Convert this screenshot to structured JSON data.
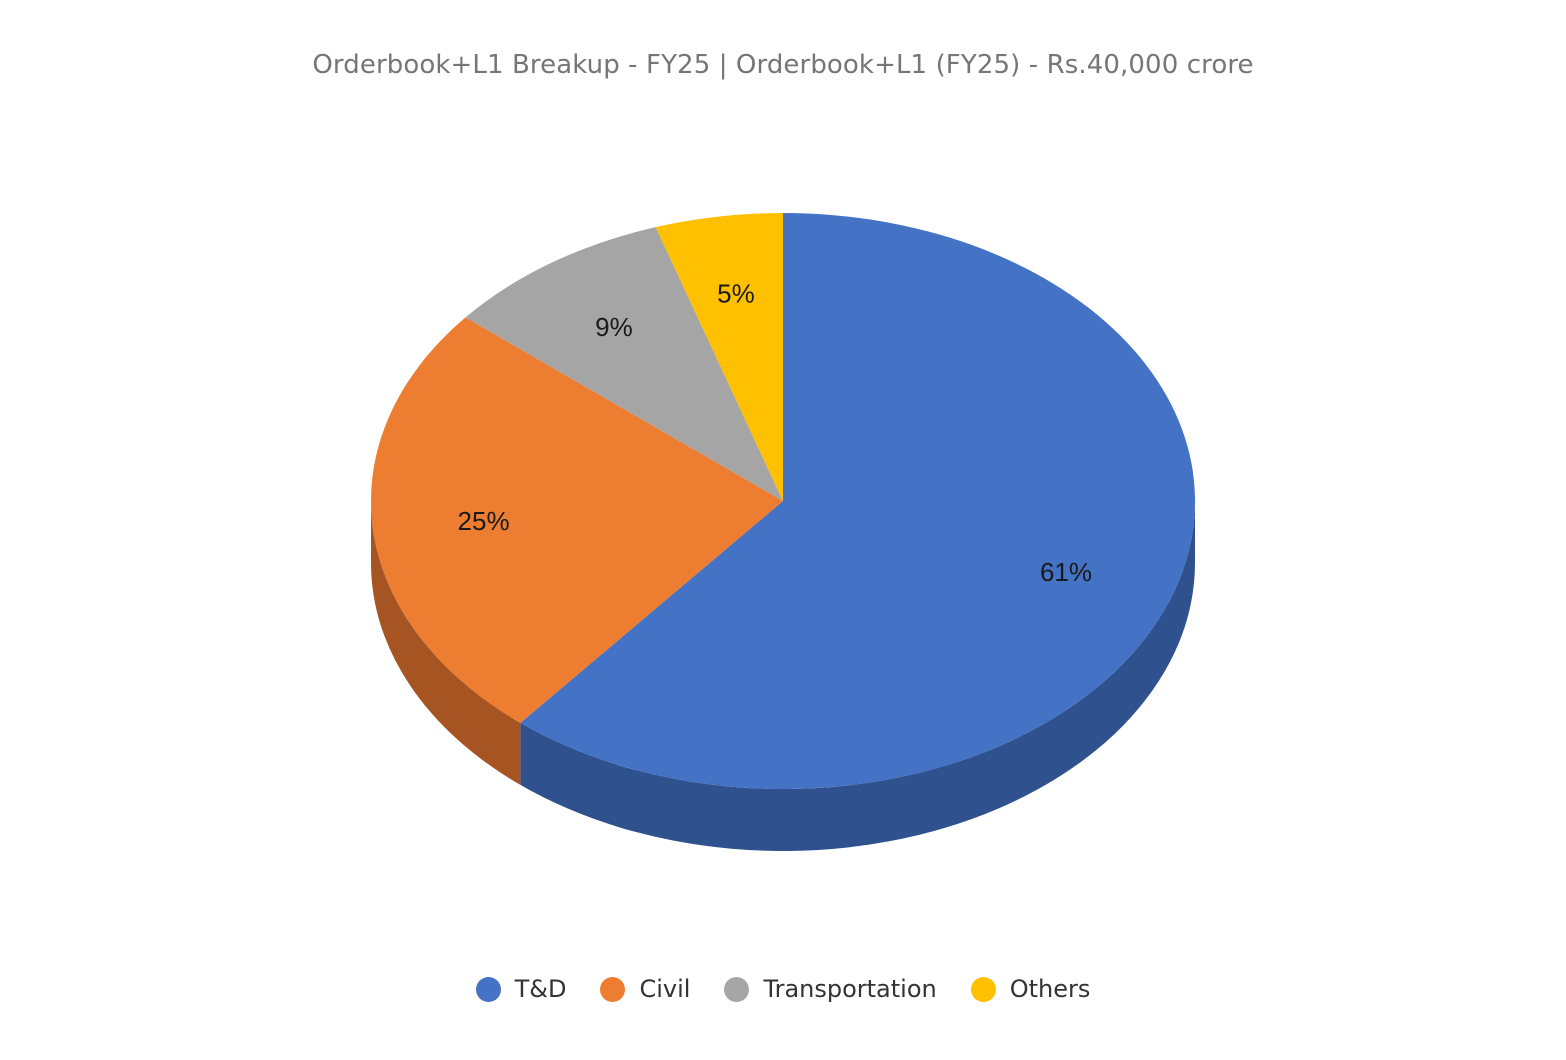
{
  "chart_data": {
    "type": "pie",
    "title": "Orderbook+L1 Breakup - FY25 | Orderbook+L1 (FY25) - Rs.40,000 crore",
    "categories": [
      "T&D",
      "Civil",
      "Transportation",
      "Others"
    ],
    "values": [
      61,
      25,
      9,
      5
    ],
    "value_labels": [
      "61%",
      "25%",
      "9%",
      "5%"
    ],
    "colors": [
      "#4472c4",
      "#ed7d31",
      "#a5a5a5",
      "#ffc000"
    ],
    "side_colors": [
      "#2f528f",
      "#a65422",
      "#737373",
      "#b38600"
    ],
    "style": "3d",
    "legend_position": "bottom"
  }
}
